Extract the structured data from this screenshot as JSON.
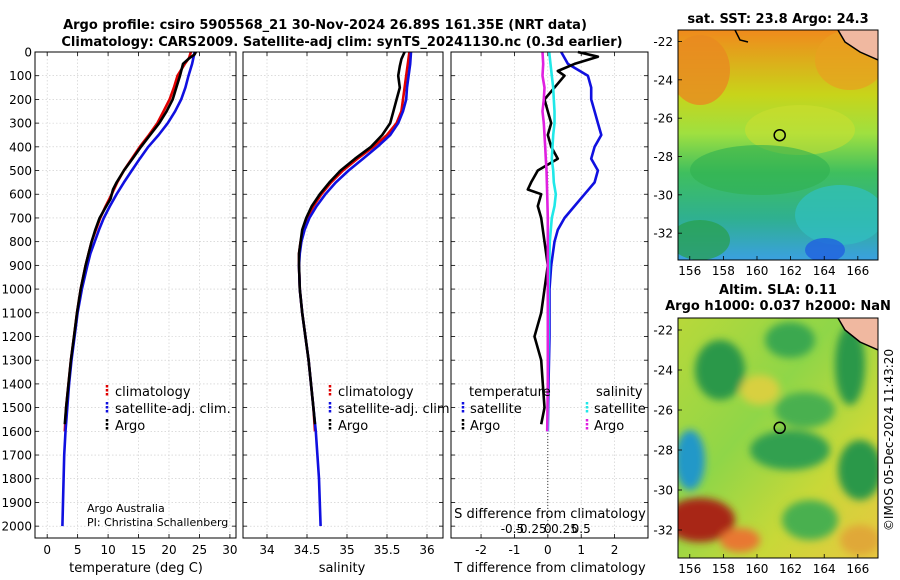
{
  "header": {
    "title_line1": "Argo profile: csiro 5905568_21 30-Nov-2024 26.89S 161.35E (NRT data)",
    "title_line2": "Climatology: CARS2009. Satellite-adj clim: synTS_20241130.nc (0.3d earlier)"
  },
  "colors": {
    "climatology": "#e00000",
    "satellite_clim": "#1010e0",
    "argo": "#000000",
    "sal_satellite": "#20e8e8",
    "sal_argo": "#e020e0"
  },
  "credit": {
    "line1": "Argo Australia",
    "line2": "PI: Christina Schallenberg"
  },
  "side_text": "©IMOS 05-Dec-2024 11:43:20",
  "chart_data": [
    {
      "type": "line",
      "id": "temperature_profile",
      "xlabel": "temperature (deg C)",
      "ylabel": "",
      "xlim": [
        -2,
        31
      ],
      "ylim": [
        2050,
        0
      ],
      "xticks": [
        0,
        5,
        10,
        15,
        20,
        25,
        30
      ],
      "yticks": [
        0,
        100,
        200,
        300,
        400,
        500,
        600,
        700,
        800,
        900,
        1000,
        1100,
        1200,
        1300,
        1400,
        1500,
        1600,
        1700,
        1800,
        1900,
        2000
      ],
      "grid": true,
      "legend": [
        "climatology",
        "satellite-adj. clim.",
        "Argo"
      ],
      "legend_position": "lower-right",
      "series": [
        {
          "name": "climatology",
          "color_key": "climatology",
          "depth": [
            0,
            25,
            50,
            100,
            150,
            200,
            250,
            300,
            350,
            400,
            450,
            500,
            550,
            600,
            650,
            700,
            750,
            800,
            850,
            900,
            1000,
            1100,
            1200,
            1300,
            1400,
            1500,
            1600
          ],
          "values": [
            23.6,
            23.3,
            22.6,
            21.4,
            20.8,
            20.1,
            19.1,
            18.1,
            16.7,
            15.2,
            13.9,
            12.6,
            11.5,
            10.6,
            9.6,
            8.7,
            8.0,
            7.3,
            6.8,
            6.3,
            5.5,
            4.9,
            4.4,
            3.9,
            3.5,
            3.1,
            2.9
          ]
        },
        {
          "name": "satellite-adj. clim.",
          "color_key": "satellite_clim",
          "depth": [
            0,
            25,
            50,
            100,
            150,
            200,
            250,
            300,
            350,
            400,
            450,
            500,
            550,
            600,
            650,
            700,
            750,
            800,
            850,
            900,
            1000,
            1100,
            1200,
            1300,
            1400,
            1500,
            1600,
            1700,
            1800,
            1900,
            2000
          ],
          "values": [
            24.2,
            24.0,
            23.8,
            23.2,
            22.7,
            22.0,
            21.0,
            19.8,
            18.3,
            16.6,
            15.2,
            13.9,
            12.6,
            11.4,
            10.3,
            9.3,
            8.5,
            7.8,
            7.1,
            6.6,
            5.7,
            5.0,
            4.5,
            4.0,
            3.6,
            3.3,
            3.0,
            2.8,
            2.7,
            2.6,
            2.5
          ]
        },
        {
          "name": "Argo",
          "color_key": "argo",
          "depth": [
            0,
            10,
            25,
            50,
            100,
            150,
            200,
            250,
            300,
            350,
            400,
            450,
            500,
            550,
            580,
            620,
            650,
            700,
            750,
            800,
            850,
            900,
            1000,
            1100,
            1200,
            1300,
            1400,
            1500,
            1570
          ],
          "values": [
            24.4,
            24.2,
            23.4,
            22.3,
            21.8,
            21.2,
            20.6,
            19.6,
            18.4,
            16.9,
            15.4,
            14.0,
            12.6,
            11.4,
            10.8,
            10.4,
            9.7,
            8.6,
            7.9,
            7.3,
            6.8,
            6.3,
            5.5,
            4.9,
            4.4,
            3.9,
            3.5,
            3.1,
            2.9
          ]
        }
      ]
    },
    {
      "type": "line",
      "id": "salinity_profile",
      "xlabel": "salinity",
      "ylabel": "",
      "xlim": [
        33.7,
        36.2
      ],
      "ylim": [
        2050,
        0
      ],
      "xticks": [
        34,
        34.5,
        35,
        35.5,
        36
      ],
      "grid": true,
      "legend": [
        "climatology",
        "satellite-adj. clim.",
        "Argo"
      ],
      "legend_position": "lower-right",
      "series": [
        {
          "name": "climatology",
          "color_key": "climatology",
          "depth": [
            0,
            50,
            100,
            150,
            200,
            250,
            300,
            350,
            400,
            450,
            500,
            550,
            600,
            650,
            700,
            750,
            800,
            850,
            900,
            1000,
            1100,
            1200,
            1300,
            1400,
            1500,
            1600
          ],
          "values": [
            35.78,
            35.76,
            35.74,
            35.72,
            35.7,
            35.68,
            35.62,
            35.5,
            35.33,
            35.13,
            34.95,
            34.8,
            34.68,
            34.58,
            34.5,
            34.45,
            34.42,
            34.4,
            34.4,
            34.41,
            34.44,
            34.48,
            34.52,
            34.55,
            34.58,
            34.6
          ]
        },
        {
          "name": "satellite-adj. clim.",
          "color_key": "satellite_clim",
          "depth": [
            0,
            50,
            100,
            150,
            200,
            250,
            300,
            350,
            400,
            450,
            500,
            550,
            600,
            650,
            700,
            750,
            800,
            850,
            900,
            1000,
            1100,
            1200,
            1300,
            1400,
            1500,
            1600,
            1700,
            1800,
            1900,
            2000
          ],
          "values": [
            35.8,
            35.79,
            35.77,
            35.75,
            35.74,
            35.7,
            35.64,
            35.54,
            35.38,
            35.2,
            35.02,
            34.86,
            34.73,
            34.62,
            34.53,
            34.47,
            34.43,
            34.41,
            34.4,
            34.41,
            34.44,
            34.48,
            34.52,
            34.55,
            34.58,
            34.61,
            34.63,
            34.65,
            34.66,
            34.67
          ]
        },
        {
          "name": "Argo",
          "color_key": "argo",
          "depth": [
            0,
            30,
            60,
            100,
            150,
            200,
            250,
            300,
            350,
            400,
            450,
            500,
            550,
            600,
            650,
            700,
            750,
            800,
            850,
            900,
            1000,
            1100,
            1200,
            1300,
            1400,
            1500,
            1570
          ],
          "values": [
            35.72,
            35.68,
            35.66,
            35.64,
            35.66,
            35.62,
            35.58,
            35.54,
            35.44,
            35.3,
            35.1,
            34.92,
            34.78,
            34.66,
            34.56,
            34.49,
            34.44,
            34.42,
            34.4,
            34.4,
            34.41,
            34.44,
            34.48,
            34.52,
            34.55,
            34.58,
            34.6
          ]
        }
      ]
    },
    {
      "type": "line",
      "id": "difference_profile",
      "xlabel": "T difference from climatology",
      "xlabel_top": "S difference from climatology",
      "ylabel": "",
      "xlim": [
        -2.9,
        3.0
      ],
      "ylim": [
        2050,
        0
      ],
      "xticks": [
        -2,
        -1,
        0,
        1,
        2
      ],
      "xticks_s": [
        "-0.5",
        "-0.25",
        "0",
        "0.25",
        "0.5"
      ],
      "grid": true,
      "legend_temperature_title": "temperature",
      "legend_salinity_title": "salinity",
      "legend_temperature": [
        "satellite",
        "Argo"
      ],
      "legend_salinity": [
        "satellite",
        "Argo"
      ],
      "legend_position": "lower",
      "series": [
        {
          "name": "temperature satellite",
          "color_key": "satellite_clim",
          "depth": [
            0,
            50,
            100,
            150,
            200,
            250,
            300,
            350,
            400,
            450,
            500,
            550,
            600,
            650,
            700,
            750,
            800,
            900,
            1000,
            1100,
            1200,
            1400,
            1600
          ],
          "values": [
            0.4,
            0.6,
            1.2,
            1.3,
            1.3,
            1.4,
            1.5,
            1.6,
            1.4,
            1.3,
            1.5,
            1.4,
            1.1,
            0.8,
            0.5,
            0.3,
            0.2,
            0.1,
            0.05,
            0.05,
            0.05,
            0.02,
            0.0
          ]
        },
        {
          "name": "temperature Argo",
          "color_key": "argo",
          "depth": [
            0,
            20,
            50,
            80,
            100,
            150,
            200,
            250,
            300,
            350,
            400,
            450,
            500,
            550,
            580,
            600,
            650,
            700,
            800,
            900,
            1000,
            1100,
            1200,
            1300,
            1400,
            1500,
            1570
          ],
          "values": [
            0.9,
            1.5,
            0.8,
            0.3,
            0.5,
            0.2,
            -0.1,
            0.0,
            0.1,
            0.0,
            0.1,
            0.3,
            -0.3,
            -0.5,
            -0.6,
            -0.2,
            -0.3,
            -0.2,
            -0.1,
            0.0,
            -0.1,
            -0.2,
            -0.4,
            -0.2,
            -0.15,
            -0.1,
            -0.2
          ]
        },
        {
          "name": "salinity satellite",
          "color_key": "sal_satellite",
          "depth": [
            0,
            50,
            100,
            150,
            200,
            250,
            300,
            350,
            400,
            450,
            500,
            550,
            600,
            650,
            700,
            800,
            900,
            1000,
            1200,
            1400,
            1600
          ],
          "values": [
            0.02,
            0.04,
            0.06,
            0.08,
            0.09,
            0.1,
            0.1,
            0.08,
            0.07,
            0.06,
            0.08,
            0.09,
            0.12,
            0.1,
            0.06,
            0.03,
            0.02,
            0.01,
            0.01,
            0.0,
            0.0
          ]
        },
        {
          "name": "salinity Argo",
          "color_key": "sal_argo",
          "depth": [
            0,
            50,
            100,
            150,
            200,
            250,
            300,
            350,
            400,
            450,
            500,
            600,
            700,
            800,
            900,
            1000,
            1200,
            1400,
            1600
          ],
          "values": [
            -0.08,
            -0.07,
            -0.08,
            -0.05,
            -0.06,
            -0.08,
            -0.06,
            -0.05,
            -0.04,
            -0.03,
            -0.02,
            -0.01,
            0.0,
            0.0,
            0.0,
            0.0,
            0.0,
            0.0,
            -0.01
          ]
        }
      ]
    },
    {
      "type": "heatmap",
      "id": "sst_map",
      "title": "sat. SST: 23.8 Argo: 24.3",
      "xlim": [
        155.3,
        167.2
      ],
      "ylim": [
        -33.4,
        -21.4
      ],
      "xticks": [
        156,
        158,
        160,
        162,
        164,
        166
      ],
      "yticks": [
        -22,
        -24,
        -26,
        -28,
        -30,
        -32
      ],
      "marker": {
        "lon": 161.35,
        "lat": -26.89
      }
    },
    {
      "type": "heatmap",
      "id": "sla_map",
      "title_line1": "Altim. SLA: 0.11",
      "title_line2": "Argo h1000: 0.037 h2000: NaN",
      "xlim": [
        155.3,
        167.2
      ],
      "ylim": [
        -33.4,
        -21.4
      ],
      "xticks": [
        156,
        158,
        160,
        162,
        164,
        166
      ],
      "yticks": [
        -22,
        -24,
        -26,
        -28,
        -30,
        -32
      ],
      "marker": {
        "lon": 161.35,
        "lat": -26.89
      }
    }
  ]
}
